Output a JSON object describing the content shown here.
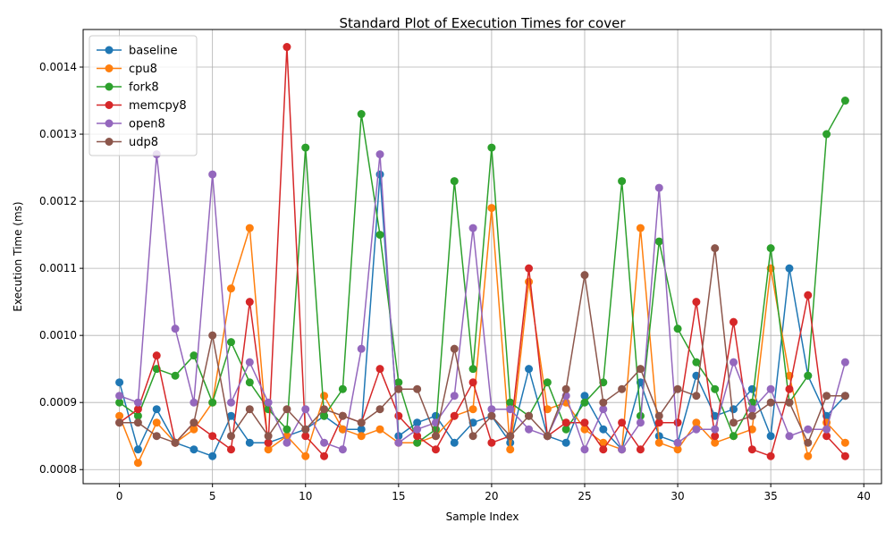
{
  "chart_data": {
    "type": "line",
    "title": "Standard Plot of Execution Times for cover",
    "xlabel": "Sample Index",
    "ylabel": "Execution Time (ms)",
    "xlim": [
      -1.95,
      40.95
    ],
    "ylim": [
      0.000779,
      0.001456
    ],
    "xticks": [
      0,
      5,
      10,
      15,
      20,
      25,
      30,
      35,
      40
    ],
    "xtick_labels": [
      "0",
      "5",
      "10",
      "15",
      "20",
      "25",
      "30",
      "35",
      "40"
    ],
    "yticks": [
      0.0008,
      0.0009,
      0.001,
      0.0011,
      0.0012,
      0.0013,
      0.0014
    ],
    "ytick_labels": [
      "0.0008",
      "0.0009",
      "0.0010",
      "0.0011",
      "0.0012",
      "0.0013",
      "0.0014"
    ],
    "grid": true,
    "legend_position": "top-left",
    "x": [
      0,
      1,
      2,
      3,
      4,
      5,
      6,
      7,
      8,
      9,
      10,
      11,
      12,
      13,
      14,
      15,
      16,
      17,
      18,
      19,
      20,
      21,
      22,
      23,
      24,
      25,
      26,
      27,
      28,
      29,
      30,
      31,
      32,
      33,
      34,
      35,
      36,
      37,
      38,
      39
    ],
    "series": [
      {
        "name": "baseline",
        "color": "#1f77b4",
        "values": [
          0.00093,
          0.00083,
          0.00089,
          0.00084,
          0.00083,
          0.00082,
          0.00088,
          0.00084,
          0.00084,
          0.00085,
          0.00086,
          0.00088,
          0.00086,
          0.00086,
          0.00124,
          0.00085,
          0.00087,
          0.00088,
          0.00084,
          0.00087,
          0.00088,
          0.00084,
          0.00095,
          0.00085,
          0.00084,
          0.00091,
          0.00086,
          0.00083,
          0.00093,
          0.00085,
          0.00084,
          0.00094,
          0.00088,
          0.00089,
          0.00092,
          0.00085,
          0.0011,
          0.00094,
          0.00088,
          0.00091
        ]
      },
      {
        "name": "cpu8",
        "color": "#ff7f0e",
        "values": [
          0.00088,
          0.00081,
          0.00087,
          0.00084,
          0.00086,
          0.0009,
          0.00107,
          0.00116,
          0.00083,
          0.00085,
          0.00082,
          0.00091,
          0.00086,
          0.00085,
          0.00086,
          0.00084,
          0.00084,
          0.00085,
          0.00088,
          0.00089,
          0.00119,
          0.00083,
          0.00108,
          0.00089,
          0.0009,
          0.00086,
          0.00084,
          0.00083,
          0.00116,
          0.00084,
          0.00083,
          0.00087,
          0.00084,
          0.00085,
          0.00086,
          0.0011,
          0.00094,
          0.00082,
          0.00087,
          0.00084
        ]
      },
      {
        "name": "fork8",
        "color": "#2ca02c",
        "values": [
          0.0009,
          0.00088,
          0.00095,
          0.00094,
          0.00097,
          0.0009,
          0.00099,
          0.00093,
          0.00089,
          0.00086,
          0.00128,
          0.00088,
          0.00092,
          0.00133,
          0.00115,
          0.00093,
          0.00084,
          0.00086,
          0.00123,
          0.00095,
          0.00128,
          0.0009,
          0.00088,
          0.00093,
          0.00086,
          0.0009,
          0.00093,
          0.00123,
          0.00088,
          0.00114,
          0.00101,
          0.00096,
          0.00092,
          0.00085,
          0.0009,
          0.00113,
          0.0009,
          0.00094,
          0.0013,
          0.00135
        ]
      },
      {
        "name": "memcpy8",
        "color": "#d62728",
        "values": [
          0.00087,
          0.00089,
          0.00097,
          0.00084,
          0.00087,
          0.00085,
          0.00083,
          0.00105,
          0.00084,
          0.00143,
          0.00085,
          0.00082,
          0.00088,
          0.00087,
          0.00095,
          0.00088,
          0.00085,
          0.00083,
          0.00088,
          0.00093,
          0.00084,
          0.00085,
          0.0011,
          0.00085,
          0.00087,
          0.00087,
          0.00083,
          0.00087,
          0.00083,
          0.00087,
          0.00087,
          0.00105,
          0.00085,
          0.00102,
          0.00083,
          0.00082,
          0.00092,
          0.00106,
          0.00085,
          0.00082
        ]
      },
      {
        "name": "open8",
        "color": "#9467bd",
        "values": [
          0.00091,
          0.0009,
          0.00127,
          0.00101,
          0.0009,
          0.00124,
          0.0009,
          0.00096,
          0.0009,
          0.00084,
          0.00089,
          0.00084,
          0.00083,
          0.00098,
          0.00127,
          0.00084,
          0.00086,
          0.00087,
          0.00091,
          0.00116,
          0.00089,
          0.00089,
          0.00086,
          0.00085,
          0.00091,
          0.00083,
          0.00089,
          0.00083,
          0.00087,
          0.00122,
          0.00084,
          0.00086,
          0.00086,
          0.00096,
          0.00089,
          0.00092,
          0.00085,
          0.00086,
          0.00086,
          0.00096
        ]
      },
      {
        "name": "udp8",
        "color": "#8c564b",
        "values": [
          0.00087,
          0.00087,
          0.00085,
          0.00084,
          0.00087,
          0.001,
          0.00085,
          0.00089,
          0.00085,
          0.00089,
          0.00086,
          0.00089,
          0.00088,
          0.00087,
          0.00089,
          0.00092,
          0.00092,
          0.00085,
          0.00098,
          0.00085,
          0.00088,
          0.00085,
          0.00088,
          0.00085,
          0.00092,
          0.00109,
          0.0009,
          0.00092,
          0.00095,
          0.00088,
          0.00092,
          0.00091,
          0.00113,
          0.00087,
          0.00088,
          0.0009,
          0.0009,
          0.00084,
          0.00091,
          0.00091
        ]
      }
    ]
  }
}
